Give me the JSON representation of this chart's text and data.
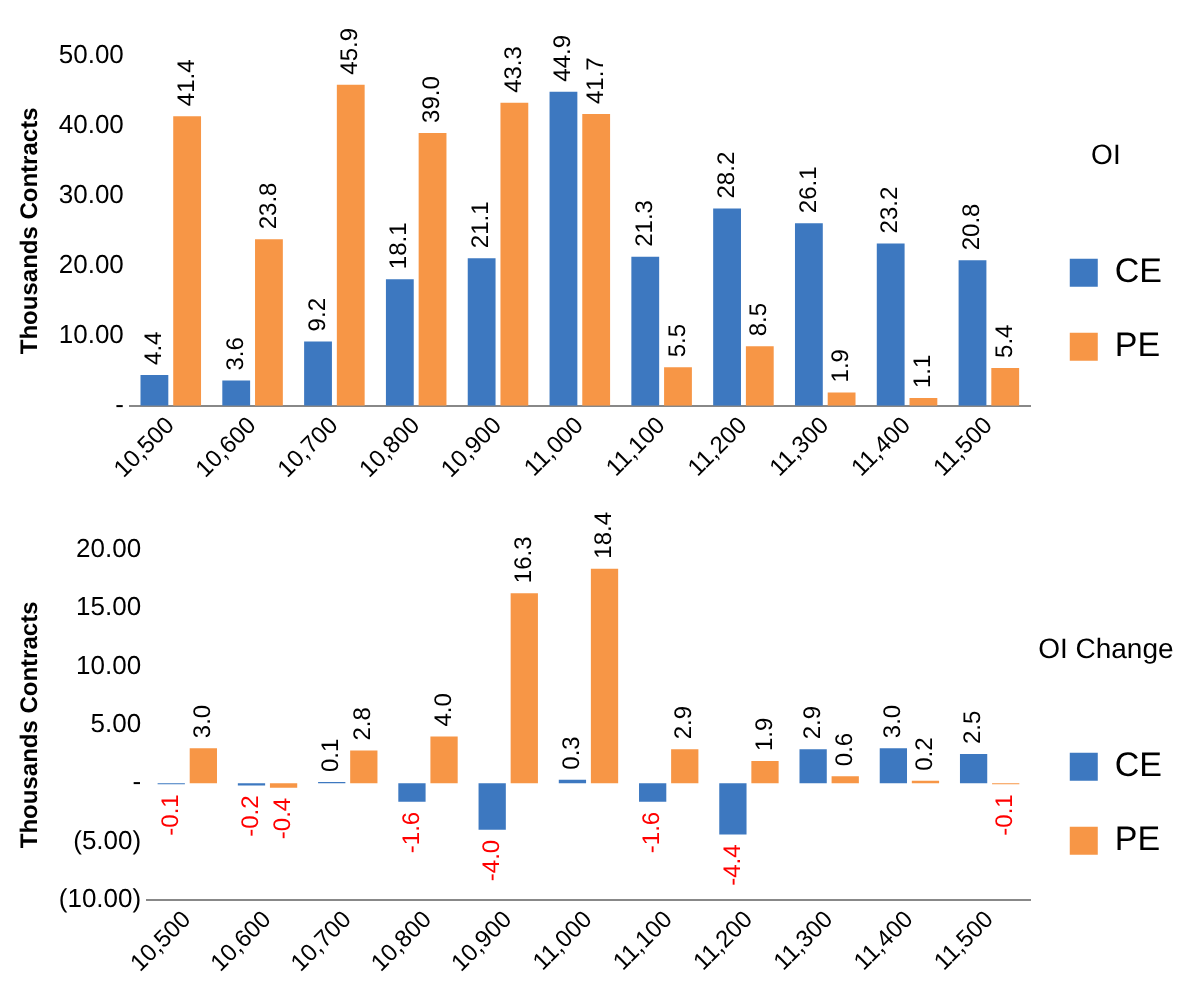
{
  "chart_data": [
    {
      "type": "bar",
      "ylabel": "Thousands Contracts",
      "legend_title": "OI",
      "categories": [
        "10,500",
        "10,600",
        "10,700",
        "10,800",
        "10,900",
        "11,000",
        "11,100",
        "11,200",
        "11,300",
        "11,400",
        "11,500"
      ],
      "series": [
        {
          "name": "CE",
          "color": "#3d78c0",
          "values": [
            4.4,
            3.6,
            9.2,
            18.1,
            21.1,
            44.9,
            21.3,
            28.2,
            26.1,
            23.2,
            20.8
          ],
          "value_labels": [
            "4.4",
            "3.6",
            "9.2",
            "18.1",
            "21.1",
            "44.9",
            "21.3",
            "28.2",
            "26.1",
            "23.2",
            "20.8"
          ]
        },
        {
          "name": "PE",
          "color": "#f79646",
          "values": [
            41.4,
            23.8,
            45.9,
            39.0,
            43.3,
            41.7,
            5.5,
            8.5,
            1.9,
            1.1,
            5.4
          ],
          "value_labels": [
            "41.4",
            "23.8",
            "45.9",
            "39.0",
            "43.3",
            "41.7",
            "5.5",
            "8.5",
            "1.9",
            "1.1",
            "5.4"
          ]
        }
      ],
      "ylim": [
        0,
        50
      ],
      "yticks": [
        {
          "value": 0,
          "label": "-"
        },
        {
          "value": 10,
          "label": "10.00"
        },
        {
          "value": 20,
          "label": "20.00"
        },
        {
          "value": 30,
          "label": "30.00"
        },
        {
          "value": 40,
          "label": "40.00"
        },
        {
          "value": 50,
          "label": "50.00"
        }
      ],
      "grid": false,
      "legend": "right"
    },
    {
      "type": "bar",
      "ylabel": "Thousands Contracts",
      "legend_title": "OI Change",
      "categories": [
        "10,500",
        "10,600",
        "10,700",
        "10,800",
        "10,900",
        "11,000",
        "11,100",
        "11,200",
        "11,300",
        "11,400",
        "11,500"
      ],
      "series": [
        {
          "name": "CE",
          "color": "#3d78c0",
          "values": [
            -0.1,
            -0.2,
            0.1,
            -1.6,
            -4.0,
            0.3,
            -1.6,
            -4.4,
            2.9,
            3.0,
            2.5
          ],
          "value_labels": [
            "-0.1",
            "-0.2",
            "0.1",
            "-1.6",
            "-4.0",
            "0.3",
            "-1.6",
            "-4.4",
            "2.9",
            "3.0",
            "2.5"
          ]
        },
        {
          "name": "PE",
          "color": "#f79646",
          "values": [
            3.0,
            -0.4,
            2.8,
            4.0,
            16.3,
            18.4,
            2.9,
            1.9,
            0.6,
            0.2,
            -0.1
          ],
          "value_labels": [
            "3.0",
            "-0.4",
            "2.8",
            "4.0",
            "16.3",
            "18.4",
            "2.9",
            "1.9",
            "0.6",
            "0.2",
            "-0.1"
          ]
        }
      ],
      "ylim": [
        -10,
        20
      ],
      "yticks": [
        {
          "value": -10,
          "label": "(10.00)"
        },
        {
          "value": -5,
          "label": "(5.00)"
        },
        {
          "value": 0,
          "label": "-"
        },
        {
          "value": 5,
          "label": "5.00"
        },
        {
          "value": 10,
          "label": "10.00"
        },
        {
          "value": 15,
          "label": "15.00"
        },
        {
          "value": 20,
          "label": "20.00"
        }
      ],
      "grid": false,
      "legend": "right"
    }
  ]
}
